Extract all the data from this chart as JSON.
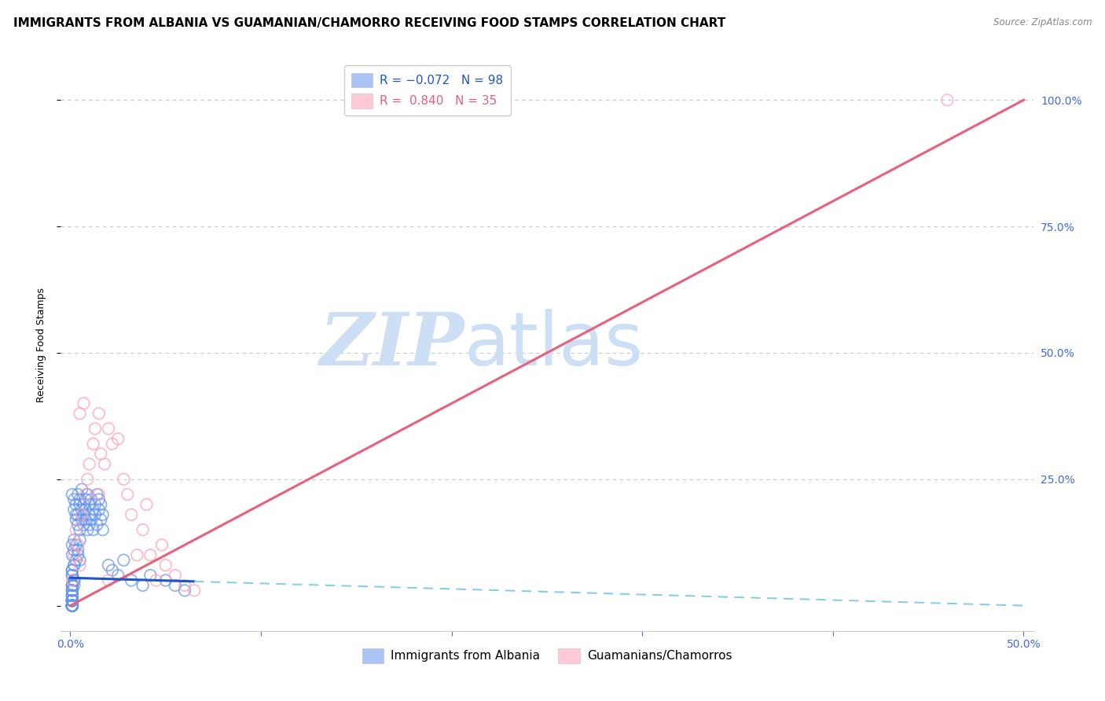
{
  "title": "IMMIGRANTS FROM ALBANIA VS GUAMANIAN/CHAMORRO RECEIVING FOOD STAMPS CORRELATION CHART",
  "source": "Source: ZipAtlas.com",
  "ylabel": "Receiving Food Stamps",
  "x_tick_labels": [
    "0.0%",
    "",
    "",
    "",
    "",
    "50.0%"
  ],
  "x_tick_values": [
    0.0,
    0.1,
    0.2,
    0.3,
    0.4,
    0.5
  ],
  "y_tick_labels": [
    "",
    "25.0%",
    "50.0%",
    "75.0%",
    "100.0%"
  ],
  "y_tick_values": [
    0.0,
    0.25,
    0.5,
    0.75,
    1.0
  ],
  "xlim": [
    0.0,
    0.52
  ],
  "ylim": [
    -0.02,
    1.08
  ],
  "albania_R": -0.072,
  "albania_N": 98,
  "guam_R": 0.84,
  "guam_N": 35,
  "albania_color": "#6495ED",
  "guam_color": "#FF9EB5",
  "albania_line_color_solid": "#1E56C8",
  "albania_line_color_dashed": "#87CEEB",
  "guam_line_color": "#E8607A",
  "watermark_zip": "ZIP",
  "watermark_atlas": "atlas",
  "watermark_color": "#ccdff5",
  "background_color": "#ffffff",
  "grid_color": "#c8c8c8",
  "title_fontsize": 11,
  "axis_label_fontsize": 9,
  "tick_fontsize": 10,
  "tick_color": "#4169E1",
  "legend_fontsize": 11,
  "albania_line_intercept": 0.055,
  "albania_line_slope": -0.11,
  "guam_line_intercept": 0.0,
  "guam_line_slope": 2.0,
  "albania_scatter_x": [
    0.001,
    0.002,
    0.002,
    0.003,
    0.003,
    0.003,
    0.004,
    0.004,
    0.004,
    0.005,
    0.005,
    0.005,
    0.006,
    0.006,
    0.006,
    0.007,
    0.007,
    0.007,
    0.008,
    0.008,
    0.008,
    0.009,
    0.009,
    0.01,
    0.01,
    0.01,
    0.011,
    0.011,
    0.012,
    0.012,
    0.013,
    0.013,
    0.014,
    0.014,
    0.015,
    0.015,
    0.016,
    0.016,
    0.017,
    0.017,
    0.001,
    0.001,
    0.002,
    0.002,
    0.003,
    0.003,
    0.004,
    0.004,
    0.005,
    0.005,
    0.001,
    0.001,
    0.002,
    0.002,
    0.001,
    0.001,
    0.001,
    0.002,
    0.002,
    0.001,
    0.001,
    0.001,
    0.002,
    0.001,
    0.001,
    0.001,
    0.001,
    0.001,
    0.001,
    0.001,
    0.02,
    0.022,
    0.025,
    0.028,
    0.032,
    0.038,
    0.042,
    0.05,
    0.055,
    0.06,
    0.001,
    0.001,
    0.001,
    0.001,
    0.001,
    0.001,
    0.001,
    0.001,
    0.001,
    0.001,
    0.001,
    0.001,
    0.001,
    0.001,
    0.001,
    0.001,
    0.001,
    0.001
  ],
  "albania_scatter_y": [
    0.22,
    0.19,
    0.21,
    0.18,
    0.2,
    0.17,
    0.16,
    0.22,
    0.18,
    0.2,
    0.15,
    0.21,
    0.19,
    0.17,
    0.23,
    0.16,
    0.2,
    0.18,
    0.17,
    0.21,
    0.19,
    0.15,
    0.22,
    0.18,
    0.2,
    0.16,
    0.21,
    0.17,
    0.19,
    0.15,
    0.2,
    0.18,
    0.22,
    0.16,
    0.19,
    0.21,
    0.17,
    0.2,
    0.18,
    0.15,
    0.12,
    0.1,
    0.11,
    0.13,
    0.09,
    0.12,
    0.1,
    0.11,
    0.09,
    0.13,
    0.06,
    0.07,
    0.05,
    0.08,
    0.04,
    0.06,
    0.07,
    0.05,
    0.08,
    0.04,
    0.03,
    0.02,
    0.04,
    0.03,
    0.02,
    0.01,
    0.03,
    0.02,
    0.04,
    0.01,
    0.08,
    0.07,
    0.06,
    0.09,
    0.05,
    0.04,
    0.06,
    0.05,
    0.04,
    0.03,
    0.0,
    0.0,
    0.01,
    0.0,
    0.01,
    0.0,
    0.0,
    0.01,
    0.0,
    0.0,
    0.0,
    0.01,
    0.0,
    0.0,
    0.0,
    0.01,
    0.0,
    0.0
  ],
  "guam_scatter_x": [
    0.001,
    0.002,
    0.003,
    0.004,
    0.005,
    0.006,
    0.008,
    0.009,
    0.01,
    0.012,
    0.013,
    0.015,
    0.016,
    0.018,
    0.02,
    0.022,
    0.025,
    0.028,
    0.03,
    0.032,
    0.035,
    0.038,
    0.04,
    0.042,
    0.045,
    0.048,
    0.05,
    0.055,
    0.06,
    0.065,
    0.005,
    0.007,
    0.015,
    0.46,
    0.02
  ],
  "guam_scatter_y": [
    0.05,
    0.1,
    0.15,
    0.12,
    0.08,
    0.18,
    0.22,
    0.25,
    0.28,
    0.32,
    0.35,
    0.38,
    0.3,
    0.28,
    0.35,
    0.32,
    0.33,
    0.25,
    0.22,
    0.18,
    0.1,
    0.15,
    0.2,
    0.1,
    0.05,
    0.12,
    0.08,
    0.06,
    0.04,
    0.03,
    0.38,
    0.4,
    0.22,
    1.0,
    0.05
  ]
}
